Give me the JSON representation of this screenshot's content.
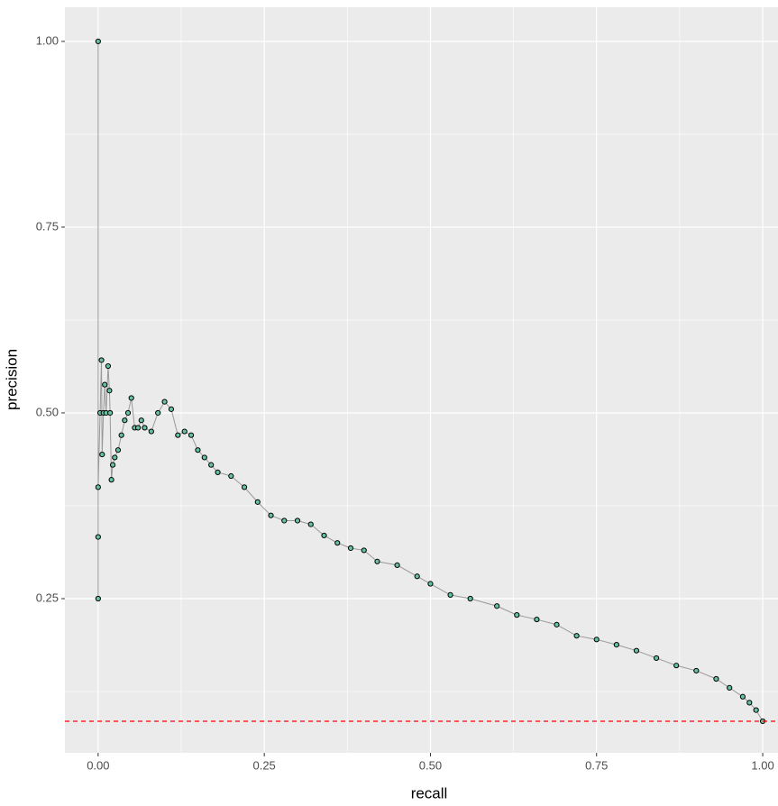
{
  "chart_data": {
    "type": "scatter",
    "x_label": "recall",
    "y_label": "precision",
    "xlim": [
      -0.05,
      1.023
    ],
    "ylim": [
      0.0425,
      1.046
    ],
    "xticks": [
      {
        "value": 0,
        "label": "0.00"
      },
      {
        "value": 0.25,
        "label": "0.25"
      },
      {
        "value": 0.5,
        "label": "0.50"
      },
      {
        "value": 0.75,
        "label": "0.75"
      },
      {
        "value": 1,
        "label": "1.00"
      }
    ],
    "yticks": [
      {
        "value": 0.25,
        "label": "0.25"
      },
      {
        "value": 0.5,
        "label": "0.50"
      },
      {
        "value": 0.75,
        "label": "0.75"
      },
      {
        "value": 1,
        "label": "1.00"
      }
    ],
    "x_minor_ticks": [
      0.125,
      0.375,
      0.625,
      0.875
    ],
    "y_minor_ticks": [
      0.125,
      0.375,
      0.625,
      0.875
    ],
    "grid": true,
    "hline": {
      "value": 0.085,
      "color": "#ff0000"
    },
    "series": [
      {
        "color": "#66c2a5",
        "line_color": "#999999",
        "x": [
          0,
          0,
          0,
          0,
          0.003,
          0.005,
          0.006,
          0.008,
          0.01,
          0.012,
          0.015,
          0.017,
          0.018,
          0.02,
          0.022,
          0.025,
          0.03,
          0.035,
          0.04,
          0.045,
          0.05,
          0.055,
          0.06,
          0.065,
          0.07,
          0.08,
          0.09,
          0.1,
          0.11,
          0.12,
          0.13,
          0.14,
          0.15,
          0.16,
          0.17,
          0.18,
          0.2,
          0.22,
          0.24,
          0.26,
          0.28,
          0.3,
          0.32,
          0.34,
          0.36,
          0.38,
          0.4,
          0.42,
          0.45,
          0.48,
          0.5,
          0.53,
          0.56,
          0.6,
          0.63,
          0.66,
          0.69,
          0.72,
          0.75,
          0.78,
          0.81,
          0.84,
          0.87,
          0.9,
          0.93,
          0.95,
          0.97,
          0.98,
          0.99,
          1.0
        ],
        "values": [
          1.0,
          0.25,
          0.333,
          0.4,
          0.5,
          0.571,
          0.444,
          0.5,
          0.538,
          0.5,
          0.563,
          0.53,
          0.5,
          0.41,
          0.43,
          0.44,
          0.45,
          0.47,
          0.49,
          0.5,
          0.52,
          0.48,
          0.48,
          0.49,
          0.48,
          0.475,
          0.5,
          0.515,
          0.505,
          0.47,
          0.475,
          0.47,
          0.45,
          0.44,
          0.43,
          0.42,
          0.415,
          0.4,
          0.38,
          0.362,
          0.355,
          0.355,
          0.35,
          0.335,
          0.325,
          0.318,
          0.315,
          0.3,
          0.295,
          0.28,
          0.27,
          0.255,
          0.25,
          0.24,
          0.228,
          0.222,
          0.215,
          0.2,
          0.195,
          0.188,
          0.18,
          0.17,
          0.16,
          0.153,
          0.142,
          0.13,
          0.118,
          0.11,
          0.1,
          0.085
        ]
      }
    ]
  }
}
